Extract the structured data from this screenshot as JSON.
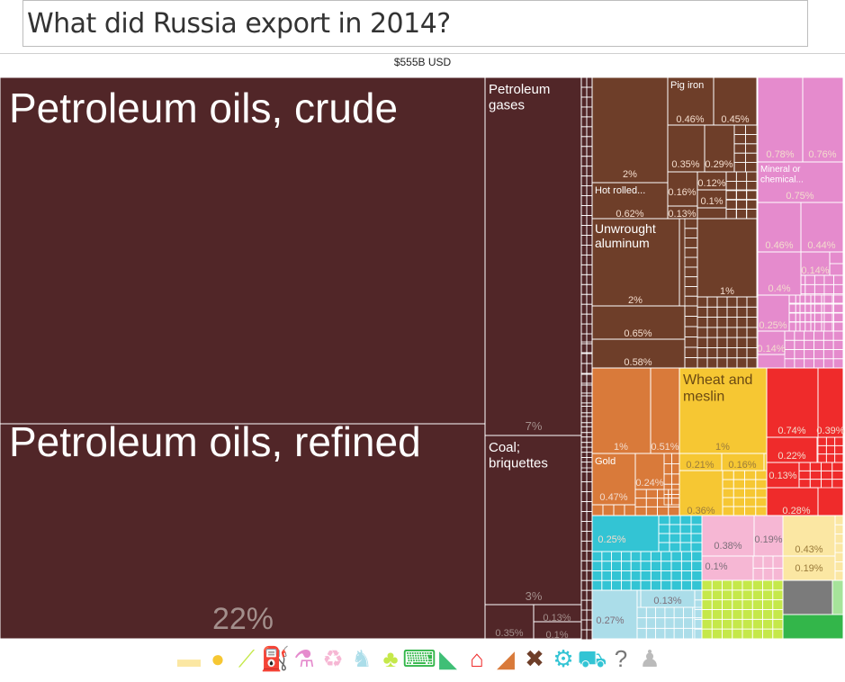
{
  "page": {
    "title": "What did Russia export in 2014?",
    "total": "$555B USD"
  },
  "chart_data": {
    "type": "treemap",
    "title": "What did Russia export in 2014?",
    "total": "$555B USD",
    "units": "% of total exports",
    "items": [
      {
        "label": "Petroleum oils, crude",
        "value": "35%",
        "color": "#512628"
      },
      {
        "label": "Petroleum oils, refined",
        "value": "22%",
        "color": "#512628"
      },
      {
        "label": "Petroleum gases",
        "value": "7%",
        "color": "#512628"
      },
      {
        "label": "Coal; briquettes",
        "value": "3%",
        "color": "#512628"
      },
      {
        "label": "",
        "value": "0.35%",
        "color": "#512628"
      },
      {
        "label": "",
        "value": "0.13%",
        "color": "#512628"
      },
      {
        "label": "",
        "value": "0.1%",
        "color": "#512628"
      },
      {
        "label": "",
        "value": "2%",
        "color": "#6e3e29"
      },
      {
        "label": "Pig iron",
        "value": "0.46%",
        "color": "#6e3e29"
      },
      {
        "label": "",
        "value": "0.45%",
        "color": "#6e3e29"
      },
      {
        "label": "",
        "value": "0.35%",
        "color": "#6e3e29"
      },
      {
        "label": "",
        "value": "0.29%",
        "color": "#6e3e29"
      },
      {
        "label": "",
        "value": "0.12%",
        "color": "#6e3e29"
      },
      {
        "label": "",
        "value": "0.16%",
        "color": "#6e3e29"
      },
      {
        "label": "",
        "value": "0.1%",
        "color": "#6e3e29"
      },
      {
        "label": "Hot rolled...",
        "value": "0.62%",
        "color": "#6e3e29"
      },
      {
        "label": "",
        "value": "0.13%",
        "color": "#6e3e29"
      },
      {
        "label": "Unwrought aluminum",
        "value": "2%",
        "color": "#6e3e29"
      },
      {
        "label": "",
        "value": "1%",
        "color": "#6e3e29"
      },
      {
        "label": "",
        "value": "0.65%",
        "color": "#6e3e29"
      },
      {
        "label": "",
        "value": "0.58%",
        "color": "#6e3e29"
      },
      {
        "label": "",
        "value": "0.78%",
        "color": "#e58bcd"
      },
      {
        "label": "",
        "value": "0.76%",
        "color": "#e58bcd"
      },
      {
        "label": "Mineral or chemical...",
        "value": "0.75%",
        "color": "#e58bcd"
      },
      {
        "label": "",
        "value": "0.46%",
        "color": "#e58bcd"
      },
      {
        "label": "",
        "value": "0.44%",
        "color": "#e58bcd"
      },
      {
        "label": "",
        "value": "0.14%",
        "color": "#e58bcd"
      },
      {
        "label": "",
        "value": "0.4%",
        "color": "#e58bcd"
      },
      {
        "label": "",
        "value": "0.25%",
        "color": "#e58bcd"
      },
      {
        "label": "",
        "value": "0.14%",
        "color": "#e58bcd"
      },
      {
        "label": "",
        "value": "1%",
        "color": "#d97a3a"
      },
      {
        "label": "",
        "value": "0.51%",
        "color": "#d97a3a"
      },
      {
        "label": "Gold",
        "value": "0.47%",
        "color": "#d97a3a"
      },
      {
        "label": "",
        "value": "0.24%",
        "color": "#d97a3a"
      },
      {
        "label": "Wheat and meslin",
        "value": "1%",
        "color": "#f6c733"
      },
      {
        "label": "",
        "value": "0.21%",
        "color": "#f6c733"
      },
      {
        "label": "",
        "value": "0.16%",
        "color": "#f6c733"
      },
      {
        "label": "",
        "value": "0.36%",
        "color": "#f6c733"
      },
      {
        "label": "",
        "value": "0.74%",
        "color": "#ef2b2b"
      },
      {
        "label": "",
        "value": "0.39%",
        "color": "#ef2b2b"
      },
      {
        "label": "",
        "value": "0.22%",
        "color": "#ef2b2b"
      },
      {
        "label": "",
        "value": "0.13%",
        "color": "#ef2b2b"
      },
      {
        "label": "",
        "value": "0.28%",
        "color": "#ef2b2b"
      },
      {
        "label": "",
        "value": "0.25%",
        "color": "#33c4d4"
      },
      {
        "label": "",
        "value": "0.13%",
        "color": "#abdde9"
      },
      {
        "label": "",
        "value": "0.27%",
        "color": "#abdde9"
      },
      {
        "label": "",
        "value": "0.38%",
        "color": "#f6b7d4"
      },
      {
        "label": "",
        "value": "0.19%",
        "color": "#f6b7d4"
      },
      {
        "label": "",
        "value": "0.1%",
        "color": "#f6b7d4"
      },
      {
        "label": "",
        "value": "0.43%",
        "color": "#fbe7a3"
      },
      {
        "label": "",
        "value": "0.19%",
        "color": "#fbe7a3"
      }
    ],
    "legend_icons": [
      {
        "icon": "animal-products-icon",
        "color": "#fbe7a3"
      },
      {
        "icon": "vegetable-products-icon",
        "color": "#f6c733"
      },
      {
        "icon": "foodstuffs-icon",
        "color": "#c5e84a"
      },
      {
        "icon": "mineral-products-icon",
        "color": "#512628"
      },
      {
        "icon": "chemical-products-icon",
        "color": "#e58bcd"
      },
      {
        "icon": "plastics-rubbers-icon",
        "color": "#f6b7d4"
      },
      {
        "icon": "animal-hides-icon",
        "color": "#abdde9"
      },
      {
        "icon": "wood-products-icon",
        "color": "#c5e84a"
      },
      {
        "icon": "textiles-icon",
        "color": "#33b64a"
      },
      {
        "icon": "footwear-icon",
        "color": "#3fbf76"
      },
      {
        "icon": "stone-glass-icon",
        "color": "#ef2b2b"
      },
      {
        "icon": "metals-icon",
        "color": "#d97a3a"
      },
      {
        "icon": "precious-metals-icon",
        "color": "#6e3e29"
      },
      {
        "icon": "machines-icon",
        "color": "#33c4d4"
      },
      {
        "icon": "transportation-icon",
        "color": "#33c4d4"
      },
      {
        "icon": "instruments-icon",
        "color": "#777777"
      },
      {
        "icon": "miscellaneous-icon",
        "color": "#bbbbbb"
      }
    ]
  }
}
